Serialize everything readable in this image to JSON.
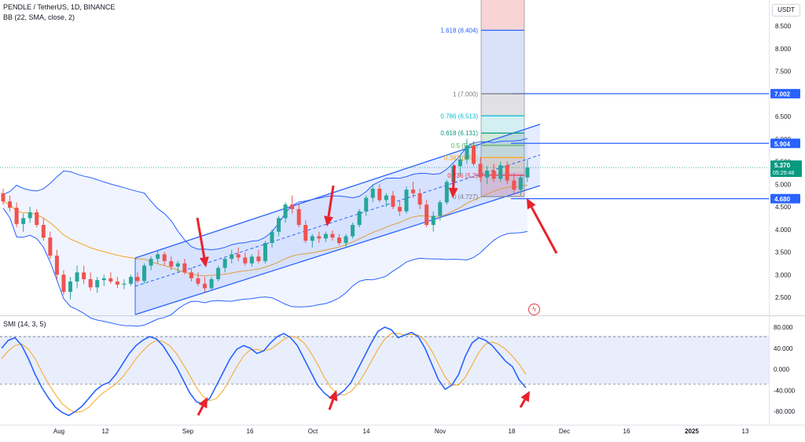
{
  "header": {
    "symbol_line": "PENDLE / TetherUS, 1D, BINANCE",
    "indicator_line": "BB (22, SMA, close, 2)",
    "currency_button": "USDT"
  },
  "subpanel": {
    "label": "SMI (14, 3, 5)"
  },
  "colors": {
    "up_candle": "#26a69a",
    "down_candle": "#ef5350",
    "bollinger": "#2962ff",
    "bb_basis": "#f5a623",
    "channel": "#2962ff",
    "smi_line": "#2962ff",
    "smi_signal": "#f5a623",
    "arrow": "#e8232d",
    "price_tag": "#089981",
    "level_line": "#2962ff"
  },
  "chart_data": [
    {
      "type": "candlestick",
      "title": "PENDLE / TetherUS, 1D, BINANCE",
      "ylim": [
        2.25,
        9.0
      ],
      "y_ticks": [
        "2.500",
        "3.000",
        "3.500",
        "4.000",
        "4.500",
        "5.000",
        "5.500",
        "6.000",
        "6.500",
        "7.000",
        "7.500",
        "8.000",
        "8.500"
      ],
      "x_ticks": [
        "Aug",
        "12",
        "Sep",
        "16",
        "Oct",
        "14",
        "Nov",
        "18",
        "Dec",
        "16",
        "2025",
        "13"
      ],
      "last_price": "5.370",
      "countdown": "05:29:48",
      "price_tags": [
        {
          "label": "7.002",
          "value": 7.002
        },
        {
          "label": "5.904",
          "value": 5.904
        },
        {
          "label": "4.680",
          "value": 4.68
        }
      ],
      "fib_levels": [
        {
          "label": "1.618 (8.404)",
          "value": 8.404,
          "color": "#2962ff"
        },
        {
          "label": "1 (7.000)",
          "value": 7.0,
          "color": "#787b86"
        },
        {
          "label": "0.786 (6.513)",
          "value": 6.513,
          "color": "#00bcd4"
        },
        {
          "label": "0.618 (6.131)",
          "value": 6.131,
          "color": "#089981"
        },
        {
          "label": "0.5 (5.86)",
          "value": 5.86,
          "color": "#4caf50"
        },
        {
          "label": "0.382 (5.59)",
          "value": 5.59,
          "color": "#f7a600"
        },
        {
          "label": "0.236 (5.2)",
          "value": 5.2,
          "color": "#f23645"
        },
        {
          "label": "0 (4.727)",
          "value": 4.727,
          "color": "#787b86"
        }
      ],
      "candles": [
        [
          4.8,
          4.9,
          4.55,
          4.62
        ],
        [
          4.62,
          4.75,
          4.4,
          4.48
        ],
        [
          4.48,
          4.6,
          4.05,
          4.12
        ],
        [
          4.12,
          4.35,
          3.95,
          4.25
        ],
        [
          4.25,
          4.5,
          4.15,
          4.38
        ],
        [
          4.38,
          4.45,
          4.05,
          4.1
        ],
        [
          4.1,
          4.25,
          3.75,
          3.82
        ],
        [
          3.82,
          3.95,
          3.35,
          3.42
        ],
        [
          3.42,
          3.55,
          2.9,
          3.0
        ],
        [
          3.0,
          3.1,
          2.55,
          2.62
        ],
        [
          2.62,
          2.95,
          2.45,
          2.85
        ],
        [
          2.85,
          3.2,
          2.7,
          3.05
        ],
        [
          3.05,
          3.2,
          2.8,
          2.9
        ],
        [
          2.9,
          3.05,
          2.65,
          2.72
        ],
        [
          2.72,
          2.95,
          2.6,
          2.88
        ],
        [
          2.88,
          3.0,
          2.75,
          2.92
        ],
        [
          2.92,
          3.05,
          2.8,
          2.85
        ],
        [
          2.85,
          2.95,
          2.7,
          2.78
        ],
        [
          2.78,
          2.9,
          2.68,
          2.8
        ],
        [
          2.8,
          3.0,
          2.75,
          2.95
        ],
        [
          2.95,
          3.05,
          2.82,
          2.86
        ],
        [
          2.86,
          3.25,
          2.8,
          3.2
        ],
        [
          3.2,
          3.4,
          3.1,
          3.35
        ],
        [
          3.35,
          3.55,
          3.25,
          3.45
        ],
        [
          3.45,
          3.5,
          3.2,
          3.3
        ],
        [
          3.3,
          3.4,
          3.1,
          3.18
        ],
        [
          3.18,
          3.3,
          3.05,
          3.25
        ],
        [
          3.25,
          3.35,
          3.0,
          3.05
        ],
        [
          3.05,
          3.15,
          2.85,
          2.92
        ],
        [
          2.92,
          3.05,
          2.75,
          2.8
        ],
        [
          2.8,
          2.95,
          2.62,
          2.7
        ],
        [
          2.7,
          2.95,
          2.65,
          2.9
        ],
        [
          2.9,
          3.2,
          2.85,
          3.15
        ],
        [
          3.15,
          3.4,
          3.05,
          3.35
        ],
        [
          3.35,
          3.55,
          3.25,
          3.45
        ],
        [
          3.45,
          3.6,
          3.3,
          3.38
        ],
        [
          3.38,
          3.5,
          3.2,
          3.25
        ],
        [
          3.25,
          3.45,
          3.18,
          3.4
        ],
        [
          3.4,
          3.55,
          3.25,
          3.3
        ],
        [
          3.3,
          3.75,
          3.25,
          3.7
        ],
        [
          3.7,
          4.0,
          3.6,
          3.95
        ],
        [
          3.95,
          4.3,
          3.85,
          4.25
        ],
        [
          4.25,
          4.6,
          4.15,
          4.55
        ],
        [
          4.55,
          4.75,
          4.35,
          4.45
        ],
        [
          4.45,
          4.55,
          4.05,
          4.1
        ],
        [
          4.1,
          4.2,
          3.7,
          3.75
        ],
        [
          3.75,
          3.9,
          3.6,
          3.85
        ],
        [
          3.85,
          3.95,
          3.7,
          3.8
        ],
        [
          3.8,
          3.95,
          3.72,
          3.9
        ],
        [
          3.9,
          3.98,
          3.75,
          3.82
        ],
        [
          3.82,
          3.9,
          3.65,
          3.7
        ],
        [
          3.7,
          3.9,
          3.62,
          3.85
        ],
        [
          3.85,
          4.15,
          3.8,
          4.1
        ],
        [
          4.1,
          4.45,
          4.05,
          4.4
        ],
        [
          4.4,
          4.75,
          4.3,
          4.7
        ],
        [
          4.7,
          5.0,
          4.6,
          4.9
        ],
        [
          4.9,
          5.0,
          4.6,
          4.65
        ],
        [
          4.65,
          4.8,
          4.5,
          4.75
        ],
        [
          4.75,
          4.85,
          4.45,
          4.5
        ],
        [
          4.5,
          4.65,
          4.3,
          4.4
        ],
        [
          4.4,
          4.95,
          4.35,
          4.88
        ],
        [
          4.88,
          5.05,
          4.7,
          4.8
        ],
        [
          4.8,
          4.9,
          4.45,
          4.55
        ],
        [
          4.55,
          4.65,
          4.05,
          4.1
        ],
        [
          4.1,
          4.4,
          3.95,
          4.3
        ],
        [
          4.3,
          4.65,
          4.2,
          4.6
        ],
        [
          4.6,
          5.1,
          4.55,
          5.05
        ],
        [
          5.05,
          5.45,
          4.95,
          5.4
        ],
        [
          5.4,
          5.65,
          5.2,
          5.55
        ],
        [
          5.55,
          6.0,
          5.45,
          5.85
        ],
        [
          5.85,
          5.95,
          5.4,
          5.45
        ],
        [
          5.45,
          5.6,
          5.05,
          5.15
        ],
        [
          5.15,
          5.4,
          5.0,
          5.3
        ],
        [
          5.3,
          5.45,
          5.05,
          5.12
        ],
        [
          5.12,
          5.5,
          5.05,
          5.42
        ],
        [
          5.42,
          5.5,
          5.0,
          5.08
        ],
        [
          5.08,
          5.25,
          4.8,
          4.88
        ],
        [
          4.88,
          5.2,
          4.75,
          5.15
        ],
        [
          5.15,
          5.55,
          5.05,
          5.37
        ]
      ]
    },
    {
      "type": "line",
      "title": "SMI (14, 3, 5)",
      "ylim": [
        -95,
        95
      ],
      "y_ticks": [
        "80.000",
        "40.000",
        "0.000",
        "-40.000",
        "-80.000"
      ],
      "bands": {
        "upper": 62,
        "lower": -28
      },
      "series": [
        {
          "values": [
            40,
            55,
            60,
            45,
            20,
            -10,
            -35,
            -55,
            -72,
            -82,
            -88,
            -80,
            -70,
            -55,
            -40,
            -30,
            -25,
            -10,
            10,
            30,
            45,
            55,
            62,
            58,
            45,
            25,
            5,
            -20,
            -45,
            -62,
            -66,
            -55,
            -30,
            -5,
            20,
            38,
            45,
            40,
            30,
            35,
            50,
            62,
            68,
            60,
            45,
            20,
            -5,
            -30,
            -45,
            -55,
            -50,
            -40,
            -25,
            0,
            25,
            50,
            72,
            80,
            75,
            60,
            65,
            70,
            62,
            40,
            10,
            -20,
            -38,
            -30,
            -10,
            25,
            50,
            60,
            55,
            45,
            30,
            15,
            5,
            -20,
            -35
          ]
        },
        {
          "values": [
            20,
            35,
            45,
            48,
            38,
            20,
            -5,
            -28,
            -48,
            -65,
            -76,
            -82,
            -80,
            -72,
            -58,
            -46,
            -37,
            -28,
            -15,
            2,
            20,
            35,
            47,
            55,
            53,
            45,
            30,
            10,
            -12,
            -35,
            -52,
            -60,
            -55,
            -40,
            -18,
            5,
            25,
            37,
            38,
            35,
            38,
            47,
            57,
            63,
            60,
            50,
            32,
            10,
            -15,
            -35,
            -47,
            -49,
            -42,
            -28,
            -8,
            15,
            38,
            57,
            68,
            68,
            65,
            66,
            65,
            55,
            35,
            10,
            -15,
            -30,
            -30,
            -15,
            8,
            32,
            48,
            52,
            47,
            38,
            25,
            10,
            -10
          ]
        }
      ]
    }
  ]
}
